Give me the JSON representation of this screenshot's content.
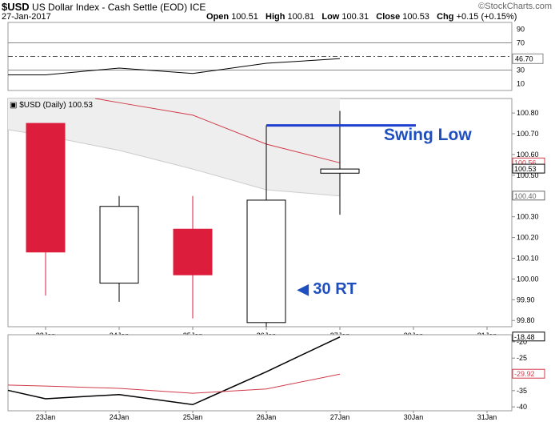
{
  "header": {
    "symbol": "$USD",
    "description": "US Dollar Index - Cash Settle (EOD) ICE",
    "date": "27-Jan-2017",
    "open_label": "Open",
    "open": "100.51",
    "high_label": "High",
    "high": "100.81",
    "low_label": "Low",
    "low": "100.31",
    "close_label": "Close",
    "close": "100.53",
    "chg_label": "Chg",
    "chg": "+0.15 (+0.15%)",
    "watermark": "©StockCharts.com"
  },
  "main_label": "$USD (Daily) 100.53",
  "annotations": {
    "swing_low": "Swing Low",
    "rt": "30 RT"
  },
  "colors": {
    "down": "#dc1e3c",
    "up": "#ffffff",
    "ma": "#d13a4a",
    "band": "#eeeeee",
    "swing": "#1f3fd0"
  },
  "chart_data": [
    {
      "type": "line",
      "panel": "upper indicator",
      "x": [
        "23Jan",
        "24Jan",
        "25Jan",
        "26Jan",
        "27Jan"
      ],
      "series": [
        {
          "values": [
            23,
            33,
            25,
            40,
            46.7
          ]
        }
      ],
      "yticks": [
        10,
        30,
        50,
        70,
        90
      ],
      "ylim": [
        0,
        100
      ],
      "value_label": "46.70",
      "reference_lines": [
        30,
        50,
        70
      ]
    },
    {
      "type": "candlestick",
      "panel": "price",
      "categories": [
        "23Jan",
        "24Jan",
        "25Jan",
        "26Jan",
        "27Jan"
      ],
      "xticks": [
        "23Jan",
        "24Jan",
        "25Jan",
        "26Jan",
        "27Jan",
        "30Jan",
        "31Jan"
      ],
      "candles": [
        {
          "date": "23Jan",
          "open": 100.75,
          "high": 100.75,
          "low": 99.92,
          "close": 100.13
        },
        {
          "date": "24Jan",
          "open": 99.98,
          "high": 100.4,
          "low": 99.89,
          "close": 100.35
        },
        {
          "date": "25Jan",
          "open": 100.24,
          "high": 100.4,
          "low": 99.81,
          "close": 100.02
        },
        {
          "date": "26Jan",
          "open": 99.79,
          "high": 100.74,
          "low": 99.77,
          "close": 100.38
        },
        {
          "date": "27Jan",
          "open": 100.51,
          "high": 100.81,
          "low": 100.31,
          "close": 100.53
        }
      ],
      "moving_average": [
        {
          "date": "24Jan",
          "value": 100.85
        },
        {
          "date": "25Jan",
          "value": 100.79
        },
        {
          "date": "26Jan",
          "value": 100.65
        },
        {
          "date": "27Jan",
          "value": 100.56
        }
      ],
      "lower_band": [
        {
          "date": "23Jan",
          "value": 100.69
        },
        {
          "date": "24Jan",
          "value": 100.62
        },
        {
          "date": "25Jan",
          "value": 100.53
        },
        {
          "date": "26Jan",
          "value": 100.43
        },
        {
          "date": "27Jan",
          "value": 100.4
        }
      ],
      "swing_low_level": 100.74,
      "yticks": [
        "99.80",
        "99.90",
        "100.00",
        "100.10",
        "100.20",
        "100.30",
        "100.40",
        "100.50",
        "100.60",
        "100.70",
        "100.80"
      ],
      "ylim": [
        99.77,
        100.87
      ],
      "right_labels": [
        {
          "value": 100.56,
          "text": "100.56",
          "color": "#d13a4a"
        },
        {
          "value": 100.53,
          "text": "100.53",
          "color": "#000000"
        },
        {
          "value": 100.4,
          "text": "100.40",
          "color": "#666666"
        }
      ]
    },
    {
      "type": "line",
      "panel": "lower indicator",
      "x": [
        "23Jan",
        "24Jan",
        "25Jan",
        "26Jan",
        "27Jan"
      ],
      "series": [
        {
          "color": "#000000",
          "values": [
            -37.5,
            -36.2,
            -39.3,
            -29.2,
            -18.48
          ],
          "start": -34.9
        },
        {
          "color": "#d13a4a",
          "values": [
            -33.6,
            -34.3,
            -35.8,
            -34.5,
            -29.92
          ],
          "start": -33.3
        }
      ],
      "yticks": [
        -20,
        -25,
        -30,
        -35,
        -40
      ],
      "ylim": [
        -41.2,
        -17.8
      ],
      "right_labels": [
        {
          "value": -18.48,
          "text": "-18.48",
          "color": "#000000"
        },
        {
          "value": -29.92,
          "text": "-29.92",
          "color": "#d13a4a"
        }
      ]
    }
  ]
}
